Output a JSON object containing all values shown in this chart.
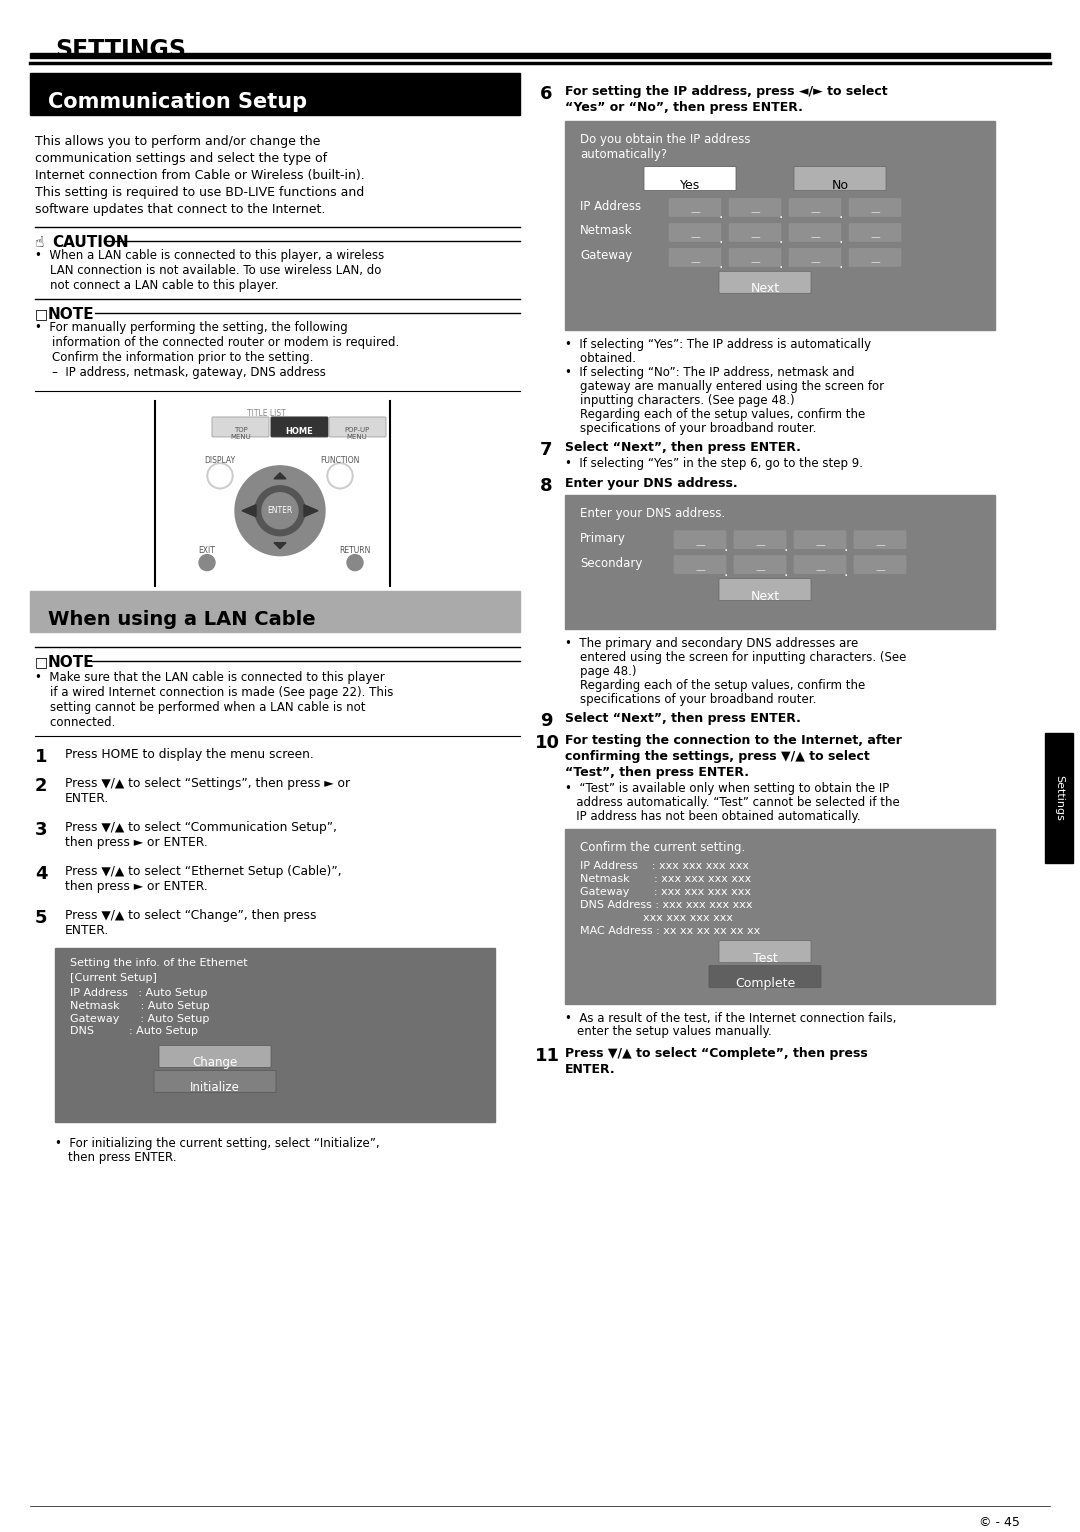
{
  "page_bg": "#ffffff",
  "title_header": "SETTINGS",
  "section1_title": "Communication Setup",
  "section1_title_bg": "#000000",
  "section1_title_color": "#ffffff",
  "section1_body": "This allows you to perform and/or change the\ncommunication settings and select the type of\nInternet connection from Cable or Wireless (built-in).\nThis setting is required to use BD-LIVE functions and\nsoftware updates that connect to the Internet.",
  "caution_label": "CAUTION",
  "caution_text": "When a LAN cable is connected to this player, a wireless\nLAN connection is not available. To use wireless LAN, do\nnot connect a LAN cable to this player.",
  "note1_label": "NOTE",
  "note1_text": "For manually performing the setting, the following\ninformation of the connected router or modem is required.\nConfirm the information prior to the setting.\n–  IP address, netmask, gateway, DNS address",
  "section2_title": "When using a LAN Cable",
  "section2_title_bg": "#c0c0c0",
  "note2_label": "NOTE",
  "note2_text": "Make sure that the LAN cable is connected to this player\nif a wired Internet connection is made (See page 22). This\nsetting cannot be performed when a LAN cable is not\nconnected.",
  "steps_left": [
    {
      "num": "1",
      "text": "Press HOME to display the menu screen."
    },
    {
      "num": "2",
      "text": "Press ▼/▲ to select “Settings”, then press ► or\nENTER."
    },
    {
      "num": "3",
      "text": "Press ▼/▲ to select “Communication Setup”,\nthen press ► or ENTER."
    },
    {
      "num": "4",
      "text": "Press ▼/▲ to select “Ethernet Setup (Cable)”,\nthen press ► or ENTER."
    },
    {
      "num": "5",
      "text": "Press ▼/▲ to select “Change”, then press\nENTER."
    }
  ],
  "steps_right": [
    {
      "num": "6",
      "text": "For setting the IP address, press ◄/► to select\n“Yes” or “No”, then press ENTER."
    },
    {
      "num": "7",
      "text": "Select “Next”, then press ENTER.\n•  If selecting “Yes” in the step 6, go to the step 9."
    },
    {
      "num": "8",
      "text": "Enter your DNS address."
    },
    {
      "num": "9",
      "text": "Select “Next”, then press ENTER."
    },
    {
      "num": "10",
      "text": "For testing the connection to the Internet, after\nconfirming the settings, press ▼/▲ to select\n“Test”, then press ENTER.\n•  “Test” is available only when setting to obtain the IP\n   address automatically. “Test” cannot be selected if the\n   IP address has not been obtained automatically."
    },
    {
      "num": "11",
      "text": "Press ▼/▲ to select “Complete”, then press\nENTER."
    }
  ],
  "screen_bg": "#808080",
  "screen_darker": "#606060",
  "screen_btn_light": "#d0d0d0",
  "screen_btn_mid": "#a0a0a0",
  "screen_text_color": "#ffffff",
  "footer_text": "© - 45",
  "right_tab_text": "Settings"
}
